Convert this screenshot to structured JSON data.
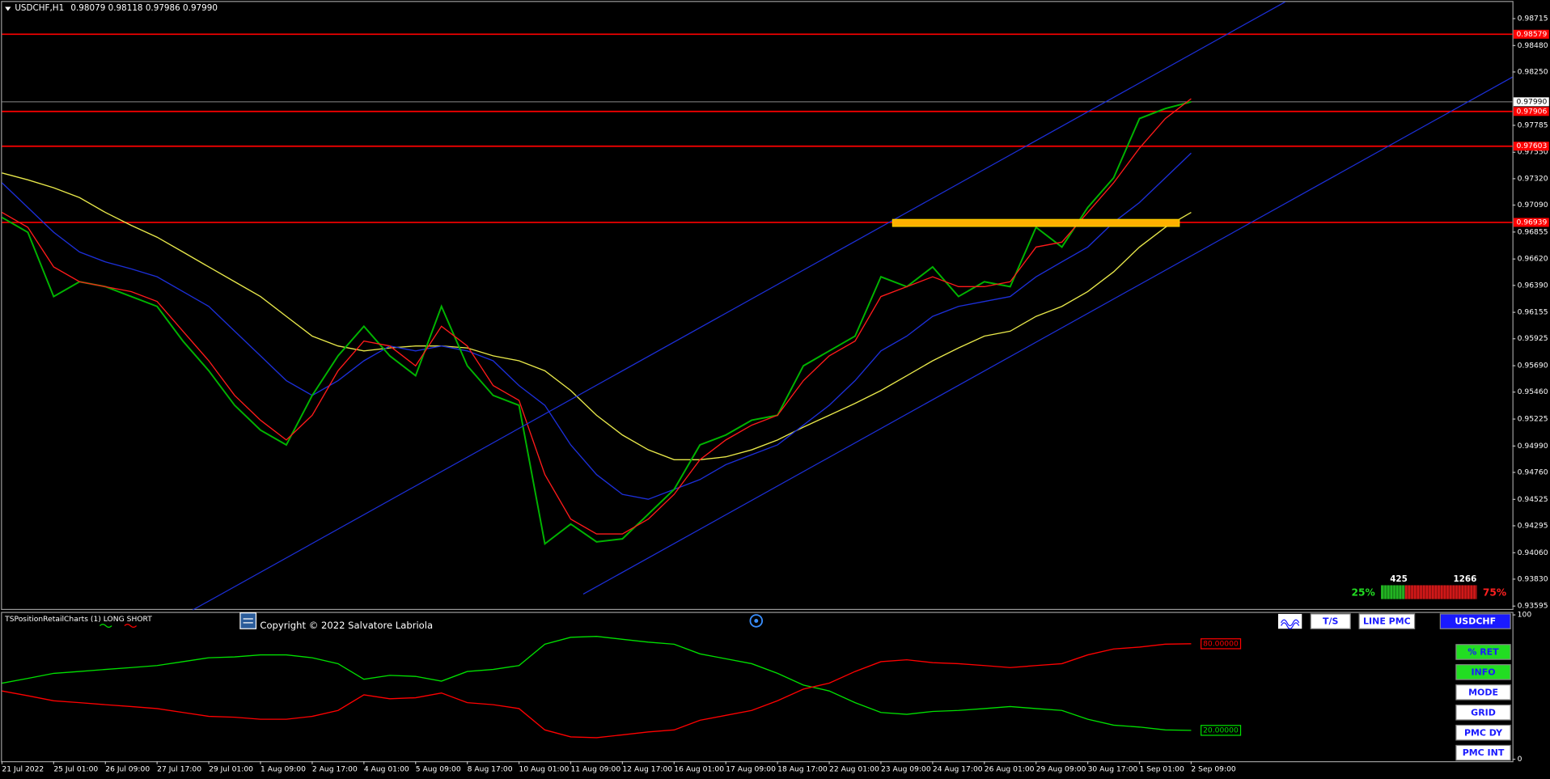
{
  "header": {
    "symbol": "USDCHF,H1",
    "prices": [
      0.98079,
      0.98118,
      0.97986,
      {
        "value": 0.9799,
        "label": "0.97990"
      }
    ]
  },
  "chart_data": [
    {
      "type": "line",
      "categories": [
        "21 Jul 2022",
        null,
        "25 Jul 01:00",
        null,
        "26 Jul 09:00",
        null,
        "27 Jul 17:00",
        null,
        "29 Jul 01:00",
        null,
        "1 Aug 09:00",
        null,
        "2 Aug 17:00",
        null,
        "4 Aug 01:00",
        null,
        "5 Aug 09:00",
        null,
        "8 Aug 17:00",
        null,
        "10 Aug 01:00",
        null,
        "11 Aug 09:00",
        null,
        "12 Aug 17:00",
        null,
        "16 Aug 01:00",
        null,
        "17 Aug 09:00",
        null,
        "18 Aug 17:00",
        null,
        "22 Aug 01:00",
        null,
        "23 Aug 09:00",
        null,
        "24 Aug 17:00",
        null,
        "26 Aug 01:00",
        null,
        "29 Aug 09:00",
        null,
        "30 Aug 17:00",
        null,
        "1 Sep 01:00",
        null,
        "2 Sep 09:00"
      ],
      "series": [
        {
          "color": "#e8e84a",
          "values": [
            0.9737,
            0.9731,
            0.97241,
            0.97155,
            0.97026,
            0.96913,
            0.9681,
            0.96681,
            0.96551,
            0.96422,
            0.96293,
            0.9612,
            0.95948,
            0.95862,
            0.95819,
            0.95845,
            0.95862,
            0.95862,
            0.95845,
            0.95776,
            0.95733,
            0.95646,
            0.95474,
            0.95258,
            0.95086,
            0.94957,
            0.94871,
            0.94871,
            0.94896,
            0.94957,
            0.95043,
            0.95155,
            0.95258,
            0.95362,
            0.95474,
            0.95603,
            0.95733,
            0.95845,
            0.95948,
            0.95991,
            0.9612,
            0.96207,
            0.96336,
            0.96508,
            0.96724,
            0.96896,
            0.97026
          ]
        },
        {
          "color": "#1c2fd8",
          "values": [
            0.97284,
            0.97069,
            0.96853,
            0.96681,
            0.96595,
            0.96534,
            0.96465,
            0.96336,
            0.96207,
            0.95991,
            0.95776,
            0.9556,
            0.95431,
            0.9556,
            0.95733,
            0.95862,
            0.95819,
            0.95862,
            0.95819,
            0.95733,
            0.95517,
            0.95345,
            0.95,
            0.94741,
            0.94569,
            0.94526,
            0.94612,
            0.94698,
            0.94828,
            0.94914,
            0.95,
            0.95172,
            0.95345,
            0.9556,
            0.95819,
            0.95948,
            0.9612,
            0.96207,
            0.9625,
            0.96293,
            0.96465,
            0.96595,
            0.96724,
            0.96939,
            0.97112,
            0.97327,
            0.97543
          ]
        },
        {
          "color": "#00b400",
          "values": [
            0.96982,
            0.96853,
            0.96293,
            0.96422,
            0.96379,
            0.96293,
            0.96207,
            0.95905,
            0.95646,
            0.95345,
            0.95129,
            0.95,
            0.95431,
            0.95776,
            0.96034,
            0.95776,
            0.95603,
            0.96207,
            0.95689,
            0.95431,
            0.95345,
            0.94138,
            0.9431,
            0.94155,
            0.94181,
            0.94396,
            0.94612,
            0.95,
            0.95086,
            0.95215,
            0.95258,
            0.95689,
            0.95819,
            0.95948,
            0.96465,
            0.96379,
            0.96551,
            0.96293,
            0.96422,
            0.96379,
            0.96896,
            0.96724,
            0.97069,
            0.97327,
            0.97844,
            0.97931,
            0.9799
          ]
        },
        {
          "color": "#ff1a1a",
          "values": [
            0.97026,
            0.96896,
            0.96551,
            0.96422,
            0.96379,
            0.96336,
            0.9625,
            0.95991,
            0.95733,
            0.95431,
            0.95215,
            0.95043,
            0.95258,
            0.95646,
            0.95905,
            0.95862,
            0.95689,
            0.96034,
            0.95862,
            0.95517,
            0.95388,
            0.94741,
            0.94353,
            0.94224,
            0.94224,
            0.94353,
            0.94569,
            0.94871,
            0.95043,
            0.95172,
            0.95258,
            0.9556,
            0.95776,
            0.95905,
            0.96293,
            0.96379,
            0.96465,
            0.96379,
            0.96379,
            0.96422,
            0.96724,
            0.96767,
            0.97026,
            0.97284,
            0.97586,
            0.97844,
            0.98017
          ]
        }
      ],
      "ylim": [
        0.9357,
        0.9886
      ],
      "yticks": [
        0.98715,
        {
          "value": 0.9848,
          "label": "0.98480"
        },
        {
          "value": 0.9825,
          "label": "0.98250"
        },
        0.97785,
        {
          "value": 0.9755,
          "label": "0.97550"
        },
        {
          "value": 0.9732,
          "label": "0.97320"
        },
        {
          "value": 0.9709,
          "label": "0.97090"
        },
        0.96855,
        {
          "value": 0.9662,
          "label": "0.96620"
        },
        {
          "value": 0.9639,
          "label": "0.96390"
        },
        0.96155,
        0.95925,
        {
          "value": 0.9569,
          "label": "0.95690"
        },
        {
          "value": 0.9546,
          "label": "0.95460"
        },
        0.95225,
        {
          "value": 0.9499,
          "label": "0.94990"
        },
        {
          "value": 0.9476,
          "label": "0.94760"
        },
        0.94525,
        0.94295,
        {
          "value": 0.9406,
          "label": "0.94060"
        },
        {
          "value": 0.9383,
          "label": "0.93830"
        },
        0.93595
      ],
      "levels": [
        0.98579,
        0.97906,
        0.97603,
        0.96939
      ],
      "level_color": "#ff0000",
      "current": {
        "value": 0.9799,
        "label": "0.97990"
      }
    },
    {
      "type": "line",
      "title": "TSPositionRetailCharts (1)",
      "series": [
        {
          "name": "LONG",
          "color": "#00e000",
          "values": [
            52.7,
            56,
            59.5,
            60.8,
            62.2,
            63.5,
            64.9,
            67.6,
            70.3,
            70.9,
            72.3,
            72.3,
            70.3,
            66.2,
            55.4,
            58.1,
            57.4,
            54.1,
            60.8,
            62.2,
            64.9,
            79.7,
            84.5,
            85.1,
            83.1,
            81.1,
            79.7,
            73,
            69.6,
            66.2,
            59.5,
            51.4,
            47.3,
            39.2,
            32.4,
            31.1,
            33.1,
            33.8,
            35.1,
            36.5,
            35.1,
            33.8,
            27.7,
            23.6,
            22.3,
            20.3,
            20
          ],
          "end_label": {
            "value": 20,
            "label": "20.00000"
          }
        },
        {
          "name": "SHORT",
          "color": "#ff0000",
          "values": [
            47.3,
            44,
            40.5,
            39.2,
            37.8,
            36.5,
            35.1,
            32.4,
            29.7,
            29.1,
            27.7,
            27.7,
            29.7,
            33.8,
            44.6,
            41.9,
            42.6,
            45.9,
            39.2,
            37.8,
            35.1,
            20.3,
            15.5,
            14.9,
            16.9,
            18.9,
            20.3,
            27,
            30.4,
            33.8,
            40.5,
            48.6,
            52.7,
            60.8,
            67.6,
            68.9,
            66.9,
            66.2,
            64.9,
            63.5,
            64.9,
            66.2,
            72.3,
            76.4,
            77.7,
            79.7,
            80
          ],
          "end_label": {
            "value": 80,
            "label": "80.00000"
          }
        }
      ],
      "ylim": [
        0,
        100
      ],
      "yticks": [
        0,
        100
      ]
    }
  ],
  "copyright": "Copyright © 2022 Salvatore Labriola",
  "buttons": [
    "T/S",
    "LINE PMC",
    "USDCHF"
  ],
  "side_buttons": [
    "% RET",
    "INFO",
    "MODE",
    "GRID",
    "PMC DY",
    "PMC INT"
  ],
  "sentiment": {
    "long": 425,
    "short": 1266,
    "long_pct": {
      "value": 25,
      "label": "25%"
    },
    "short_pct": {
      "value": 75,
      "label": "75%"
    }
  }
}
